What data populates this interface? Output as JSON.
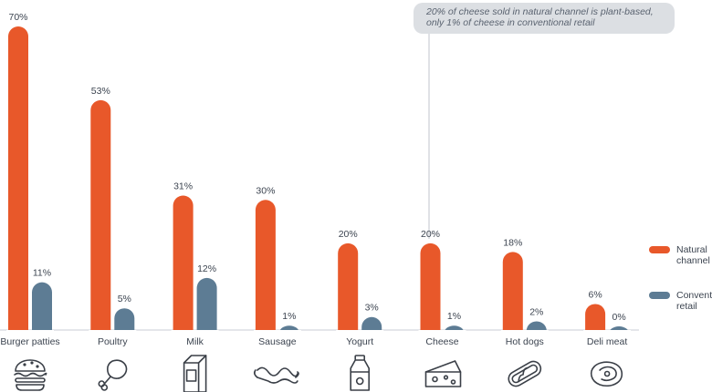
{
  "chart_data": {
    "type": "bar",
    "categories": [
      "Burger patties",
      "Poultry",
      "Milk",
      "Sausage",
      "Yogurt",
      "Cheese",
      "Hot dogs",
      "Deli meat"
    ],
    "icons": [
      "burger-icon",
      "poultry-leg-icon",
      "milk-carton-icon",
      "sausage-icon",
      "yogurt-bottle-icon",
      "cheese-icon",
      "hot-dog-icon",
      "deli-meat-icon"
    ],
    "series": [
      {
        "name": "Natural channel",
        "color": "#e8582a",
        "values": [
          70,
          53,
          31,
          30,
          20,
          20,
          18,
          6
        ]
      },
      {
        "name": "Conventional retail",
        "color": "#5d7c94",
        "values": [
          11,
          5,
          12,
          1,
          3,
          1,
          2,
          0
        ]
      }
    ],
    "value_suffix": "%",
    "ylim": [
      0,
      70
    ],
    "annotation": [
      "20% of cheese sold in natural channel is plant-based,",
      "only 1% of cheese in conventional retail"
    ],
    "legend": [
      {
        "lines": [
          "Natural",
          "channel"
        ],
        "color": "#e8582a"
      },
      {
        "lines": [
          "Conventional",
          "retail"
        ],
        "color": "#5d7c94"
      }
    ]
  }
}
